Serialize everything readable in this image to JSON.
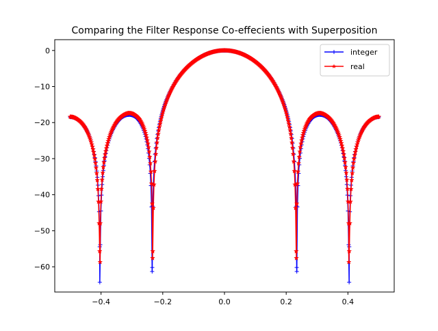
{
  "chart_data": {
    "type": "line",
    "title": "Comparing the Filter Response Co-effecients with Superposition",
    "xlabel": "",
    "ylabel": "",
    "xlim": [
      -0.55,
      0.55
    ],
    "ylim": [
      -67,
      3
    ],
    "xticks": [
      -0.4,
      -0.2,
      0.0,
      0.2,
      0.4
    ],
    "xtick_labels": [
      "−0.4",
      "−0.2",
      "0.0",
      "0.2",
      "0.4"
    ],
    "yticks": [
      0,
      -10,
      -20,
      -30,
      -40,
      -50,
      -60
    ],
    "ytick_labels": [
      "0",
      "−10",
      "−20",
      "−30",
      "−40",
      "−50",
      "−60"
    ],
    "grid": false,
    "legend_position": "top-right",
    "x_range": [
      -0.5,
      0.5
    ],
    "series": [
      {
        "name": "integer",
        "color": "#0000ff",
        "marker": "+",
        "edge_value_db": -17.5,
        "sidelobe_peak_db": -16.5,
        "null_positions": [
          -0.404,
          -0.234,
          0.234,
          0.404
        ],
        "null_depths_db": [
          -64.3,
          -60.2,
          -60.2,
          -64.3
        ]
      },
      {
        "name": "real",
        "color": "#ff0000",
        "marker": "*",
        "edge_value_db": -16.8,
        "sidelobe_peak_db": -16.5,
        "null_positions": [
          -0.403,
          -0.233,
          0.233,
          0.403
        ],
        "null_depths_db": [
          -58.7,
          -57.6,
          -57.6,
          -58.7
        ]
      }
    ]
  }
}
